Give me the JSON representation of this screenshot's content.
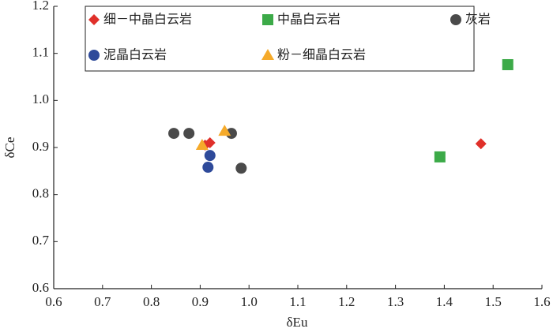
{
  "chart_data": {
    "type": "scatter",
    "x_label": "δEu",
    "y_label": "δCe",
    "xlim": [
      0.6,
      1.6
    ],
    "ylim": [
      0.6,
      1.2
    ],
    "xticks": [
      0.6,
      0.7,
      0.8,
      0.9,
      {
        "value": 1,
        "label": "1.0"
      },
      1.1,
      1.2,
      1.3,
      1.4,
      1.5,
      1.6
    ],
    "yticks": [
      0.6,
      0.7,
      0.8,
      0.9,
      {
        "value": 1,
        "label": "1.0"
      },
      1.1,
      1.2
    ],
    "legend": "upper left",
    "series": [
      {
        "name": "细－中晶白云岩",
        "color": "#e0302a",
        "marker": "diamond",
        "x": [
          0.91,
          0.92,
          1.475
        ],
        "values": [
          0.905,
          0.91,
          0.908
        ]
      },
      {
        "name": "中晶白云岩",
        "color": "#3caa48",
        "marker": "square",
        "x": [
          1.391,
          1.53
        ],
        "values": [
          0.88,
          1.076
        ]
      },
      {
        "name": "灰岩",
        "color": "#4a4a4a",
        "marker": "circle",
        "x": [
          0.846,
          0.877,
          0.964,
          0.984
        ],
        "values": [
          0.93,
          0.93,
          0.93,
          0.856
        ]
      },
      {
        "name": "泥晶白云岩",
        "color": "#2e4a9a",
        "marker": "circle",
        "x": [
          0.92,
          0.916
        ],
        "values": [
          0.883,
          0.858
        ]
      },
      {
        "name": "粉－细晶白云岩",
        "color": "#f5aa2a",
        "marker": "triangle",
        "x": [
          0.904,
          0.95
        ],
        "values": [
          0.905,
          0.935
        ]
      }
    ]
  }
}
